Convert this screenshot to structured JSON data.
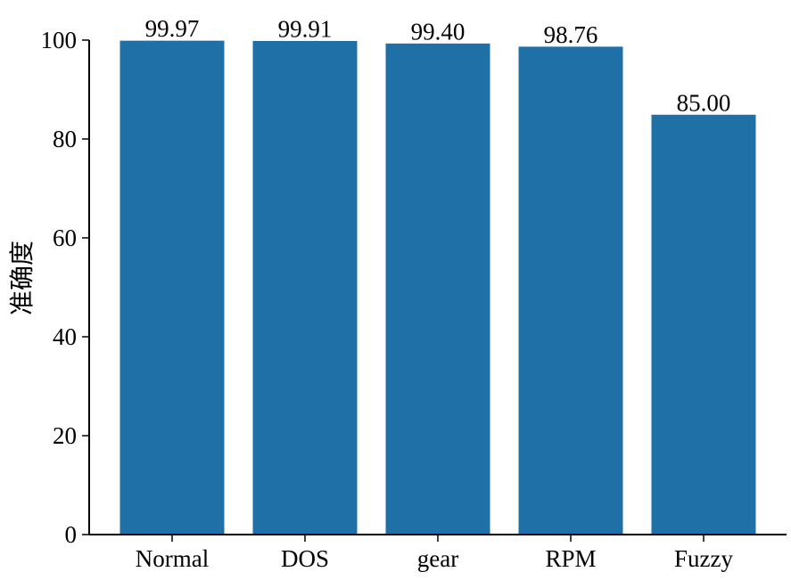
{
  "chart_data": {
    "type": "bar",
    "categories": [
      "Normal",
      "DOS",
      "gear",
      "RPM",
      "Fuzzy"
    ],
    "values": [
      99.97,
      99.91,
      99.4,
      98.76,
      85.0
    ],
    "value_labels": [
      "99.97",
      "99.91",
      "99.40",
      "98.76",
      "85.00"
    ],
    "ylabel": "准确度",
    "xlabel": "",
    "ylim": [
      0,
      100
    ],
    "yticks": [
      0,
      20,
      40,
      60,
      80,
      100
    ],
    "bar_color": "#2070a8",
    "grid": false
  }
}
